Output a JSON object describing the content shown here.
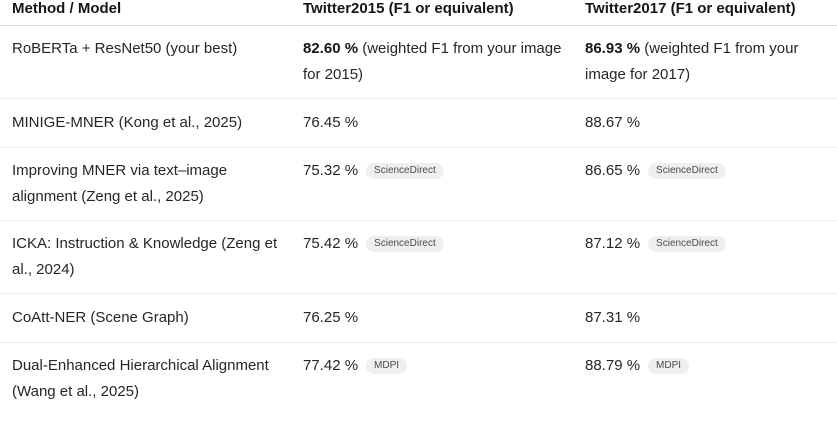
{
  "table": {
    "headers": [
      "Method / Model",
      "Twitter2015 (F1 or equivalent)",
      "Twitter2017 (F1 or equivalent)"
    ],
    "rows": [
      {
        "model": "RoBERTa + ResNet50 (your best)",
        "t2015": {
          "value": "82.60 %",
          "note": " (weighted F1 from your image for 2015)"
        },
        "t2017": {
          "value": "86.93 %",
          "note": " (weighted F1 from your image for 2017)"
        }
      },
      {
        "model": "MINIGE-MNER (Kong et al., 2025)",
        "t2015": {
          "value": "76.45 %"
        },
        "t2017": {
          "value": "88.67 %"
        }
      },
      {
        "model": "Improving MNER via text–image alignment (Zeng et al., 2025)",
        "t2015": {
          "value": "75.32 %",
          "source": "ScienceDirect"
        },
        "t2017": {
          "value": "86.65 %",
          "source": "ScienceDirect"
        }
      },
      {
        "model": "ICKA: Instruction & Knowledge (Zeng et al., 2024)",
        "t2015": {
          "value": "75.42 %",
          "source": "ScienceDirect"
        },
        "t2017": {
          "value": "87.12 %",
          "source": "ScienceDirect"
        }
      },
      {
        "model": "CoAtt-NER (Scene Graph)",
        "t2015": {
          "value": "76.25 %"
        },
        "t2017": {
          "value": "87.31 %"
        }
      },
      {
        "model": "Dual-Enhanced Hierarchical Alignment (Wang et al., 2025)",
        "t2015": {
          "value": "77.42 %",
          "source": "MDPI"
        },
        "t2017": {
          "value": "88.79 %",
          "source": "MDPI"
        }
      }
    ]
  }
}
